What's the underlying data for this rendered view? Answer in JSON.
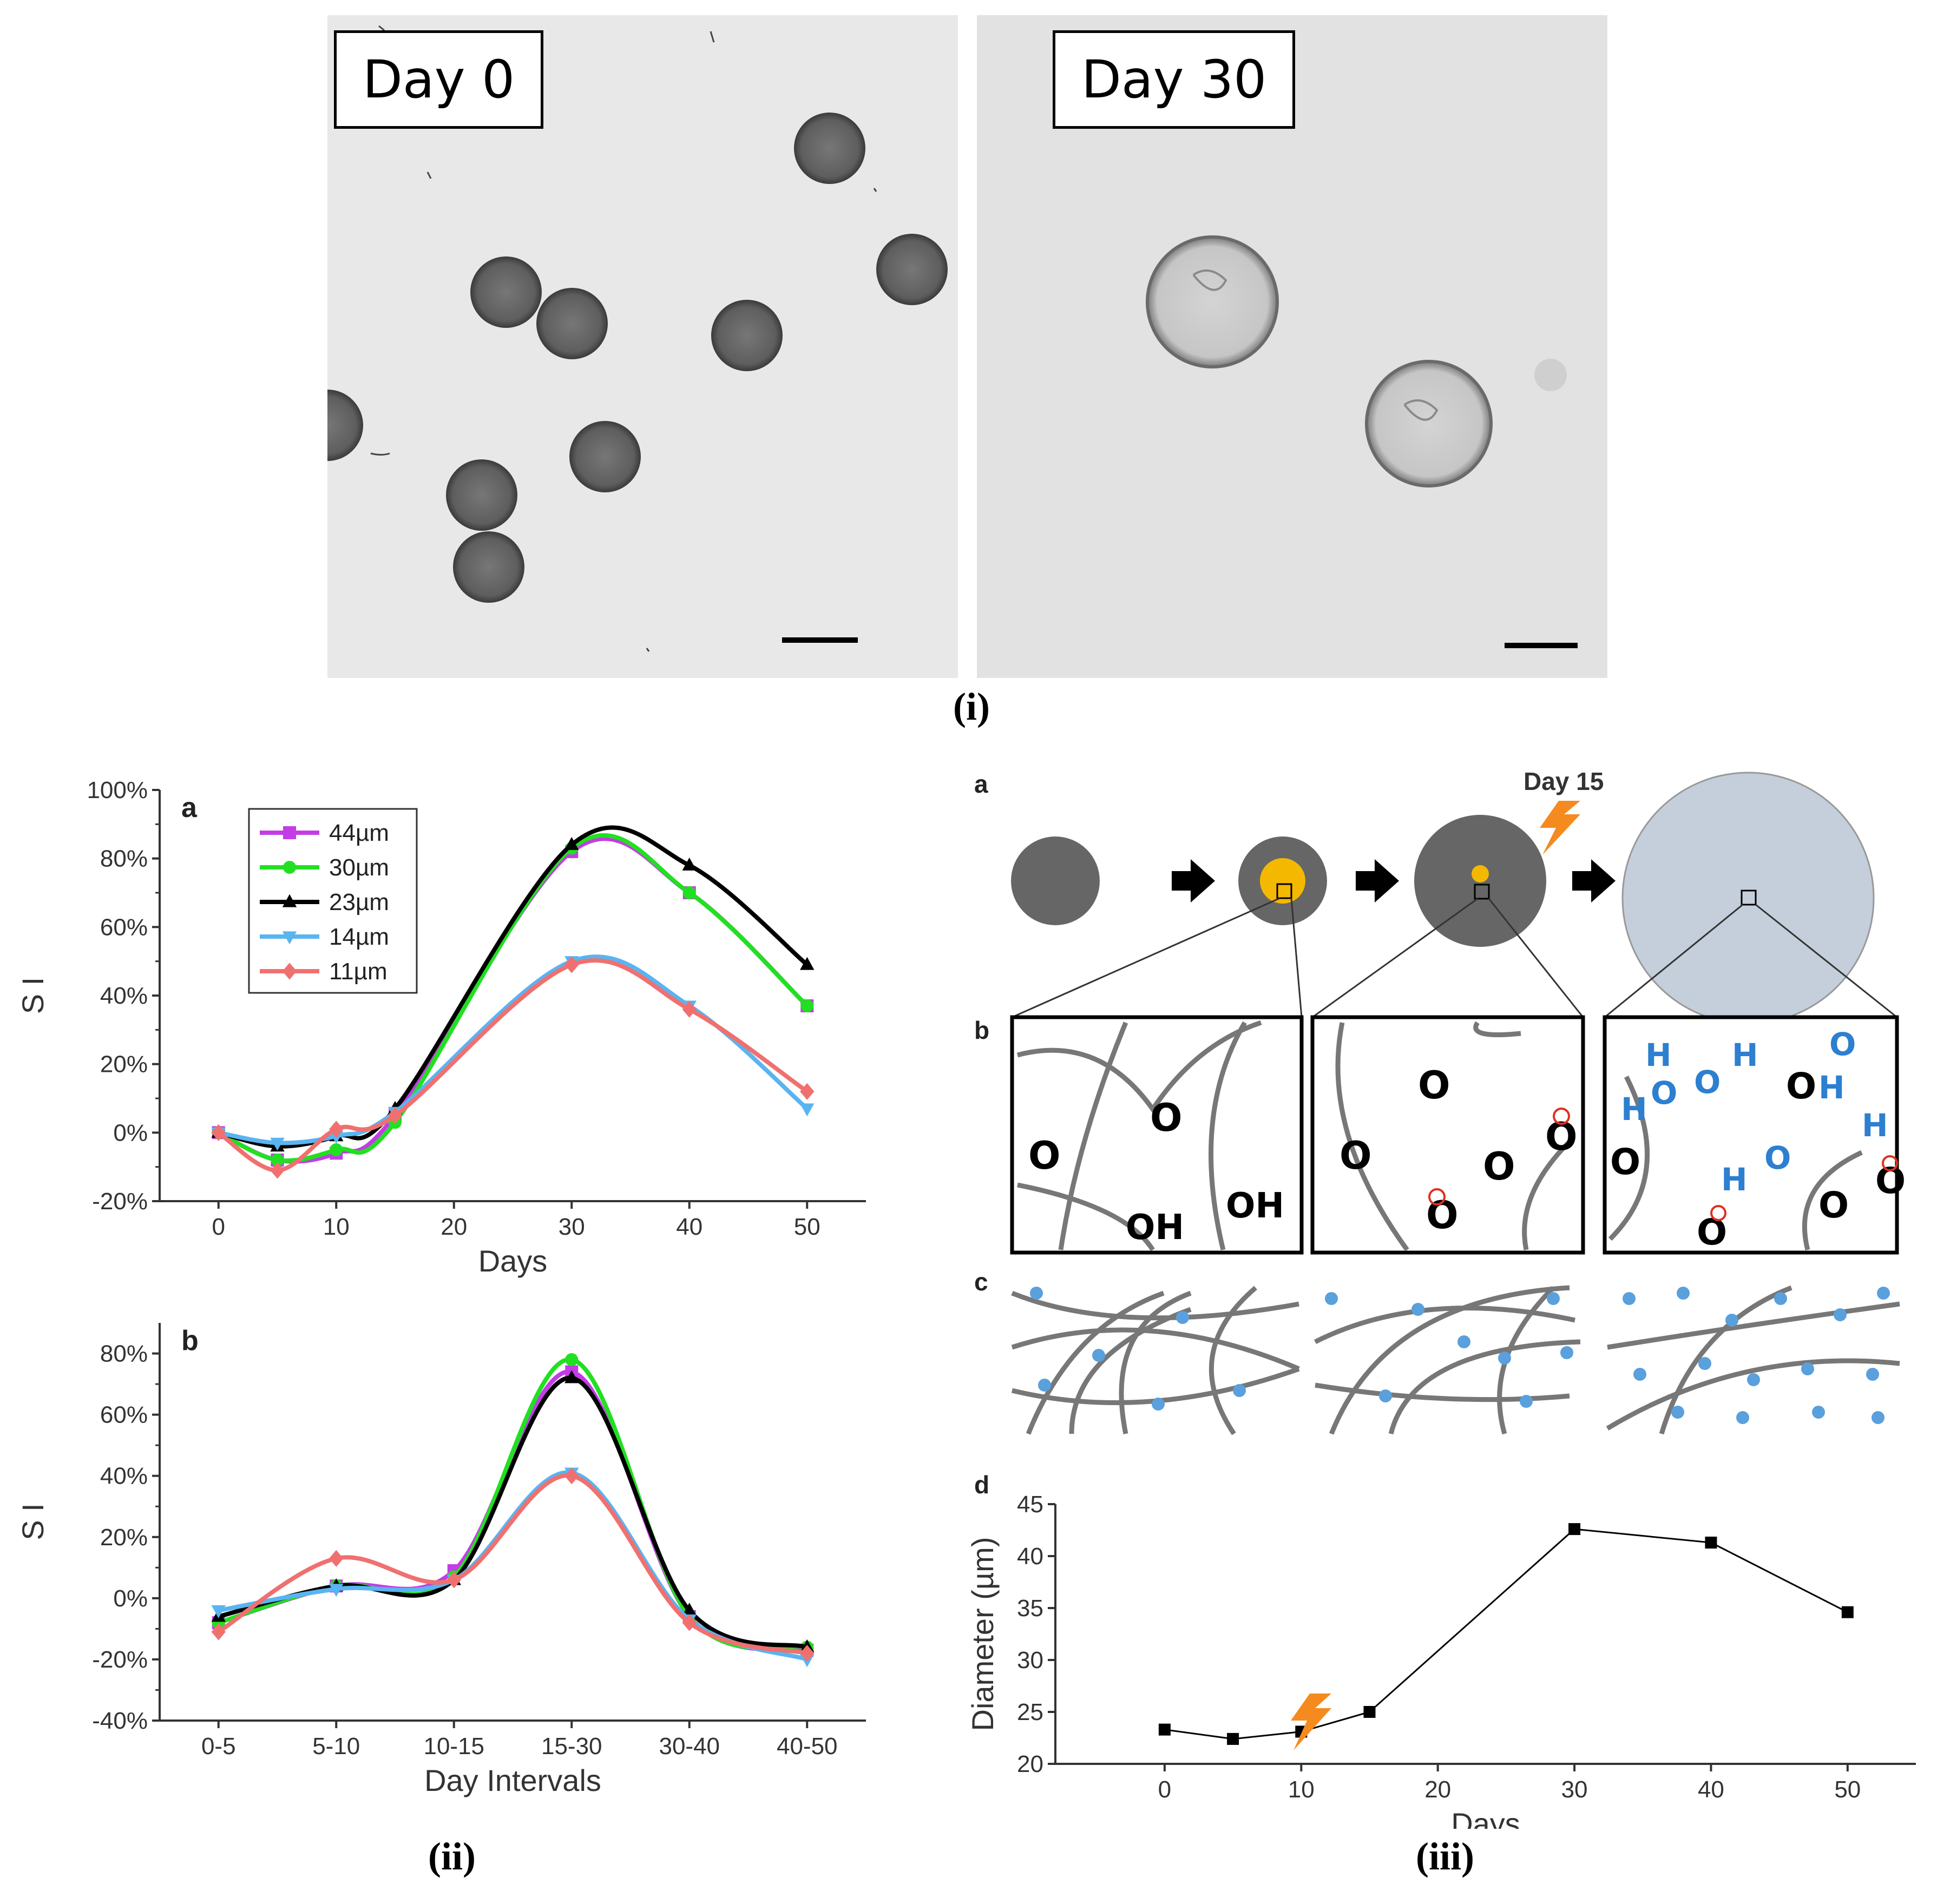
{
  "panel_i": {
    "left_label": "Day 0",
    "right_label": "Day 30",
    "caption": "(i)"
  },
  "panel_ii": {
    "caption": "(ii)"
  },
  "panel_iii": {
    "caption": "(iii)",
    "row_labels": {
      "a": "a",
      "b": "b",
      "c": "c",
      "d": "d"
    },
    "day15_label": "Day 15",
    "chem": {
      "O": "O",
      "H": "H",
      "OH": "OH",
      "minus": "−"
    }
  },
  "colors": {
    "s44": "#c43ce6",
    "s30": "#21e021",
    "s23": "#000000",
    "s14": "#5ab4f0",
    "s11": "#f07070",
    "bead": "#666666",
    "core": "#f5b800",
    "swollen": "#c4cfdb",
    "water": "#2d7fd0",
    "dot": "#5aa0dc",
    "fiber": "#777777",
    "minus": "#e03020"
  },
  "chart_data": [
    {
      "type": "line",
      "panel": "a",
      "title": "",
      "xlabel": "Days",
      "ylabel": "S I",
      "x": [
        0,
        5,
        10,
        15,
        30,
        40,
        50
      ],
      "xlim": [
        -5,
        55
      ],
      "xticks": [
        0,
        10,
        20,
        30,
        40,
        50
      ],
      "ylim": [
        -20,
        100
      ],
      "yticks": [
        -20,
        0,
        20,
        40,
        60,
        80,
        100
      ],
      "ytick_labels": [
        "-20%",
        "0%",
        "20%",
        "40%",
        "60%",
        "80%",
        "100%"
      ],
      "xtick_labels": [
        "0",
        "10",
        "20",
        "30",
        "40",
        "50"
      ],
      "legend": "top-left",
      "series": [
        {
          "name": "44µm",
          "key": "s44",
          "marker": "square",
          "values": [
            0,
            -8,
            -6,
            5,
            82,
            70,
            37
          ]
        },
        {
          "name": "30µm",
          "key": "s30",
          "marker": "circle",
          "values": [
            0,
            -8,
            -5,
            3,
            83,
            70,
            37
          ]
        },
        {
          "name": "23µm",
          "key": "s23",
          "marker": "triangle",
          "values": [
            0,
            -4,
            -1,
            7,
            84,
            78,
            49
          ]
        },
        {
          "name": "14µm",
          "key": "s14",
          "marker": "tri-down",
          "values": [
            0,
            -3,
            -1,
            6,
            50,
            37,
            7
          ]
        },
        {
          "name": "11µm",
          "key": "s11",
          "marker": "diamond",
          "values": [
            0,
            -11,
            1,
            5,
            49,
            36,
            12
          ]
        }
      ]
    },
    {
      "type": "line",
      "panel": "b",
      "title": "",
      "xlabel": "Day Intervals",
      "ylabel": "S I",
      "categories": [
        "0-5",
        "5-10",
        "10-15",
        "15-30",
        "30-40",
        "40-50"
      ],
      "ylim": [
        -40,
        90
      ],
      "yticks": [
        -40,
        -20,
        0,
        20,
        40,
        60,
        80
      ],
      "ytick_labels": [
        "-40%",
        "-20%",
        "0%",
        "20%",
        "40%",
        "60%",
        "80%"
      ],
      "series": [
        {
          "name": "44µm",
          "key": "s44",
          "marker": "square",
          "values": [
            -8,
            4,
            9,
            74,
            -6,
            -17
          ]
        },
        {
          "name": "30µm",
          "key": "s30",
          "marker": "circle",
          "values": [
            -8,
            4,
            7,
            78,
            -6,
            -16
          ]
        },
        {
          "name": "23µm",
          "key": "s23",
          "marker": "triangle",
          "values": [
            -6,
            4,
            6,
            72,
            -4,
            -16
          ]
        },
        {
          "name": "14µm",
          "key": "s14",
          "marker": "tri-down",
          "values": [
            -4,
            3,
            6,
            41,
            -7,
            -20
          ]
        },
        {
          "name": "11µm",
          "key": "s11",
          "marker": "diamond",
          "values": [
            -11,
            13,
            6,
            40,
            -8,
            -18
          ]
        }
      ]
    },
    {
      "type": "line",
      "panel": "d",
      "title": "",
      "xlabel": "Days",
      "ylabel": "Diameter (µm)",
      "xlim": [
        -8,
        55
      ],
      "xticks": [
        0,
        10,
        20,
        30,
        40,
        50
      ],
      "xtick_labels": [
        "0",
        "10",
        "20",
        "30",
        "40",
        "50"
      ],
      "ylim": [
        20,
        45
      ],
      "yticks": [
        20,
        25,
        30,
        35,
        40,
        45
      ],
      "ytick_labels": [
        "20",
        "25",
        "30",
        "35",
        "40",
        "45"
      ],
      "x": [
        0,
        5,
        10,
        15,
        30,
        40,
        50
      ],
      "series": [
        {
          "name": "Diameter",
          "key": "s23",
          "marker": "square",
          "values": [
            23.3,
            22.4,
            23.1,
            25.0,
            42.6,
            41.3,
            34.6
          ]
        }
      ]
    }
  ]
}
